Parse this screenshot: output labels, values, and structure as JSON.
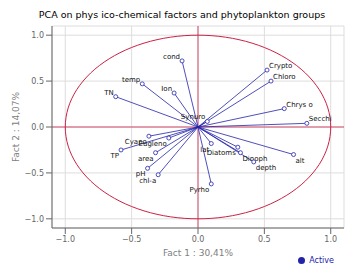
{
  "chart_data": {
    "type": "scatter",
    "title": "PCA on phys ico-chemical factors and phytoplankton groups",
    "xlabel": "Fact 1 : 30,41%",
    "ylabel": "Fact 2 : 14,07%",
    "xlim": [
      -1.1,
      1.1
    ],
    "ylim": [
      -1.1,
      1.1
    ],
    "xticks": [
      {
        "value": -1.0,
        "label": "−1.0"
      },
      {
        "value": -0.5,
        "label": "−0.5"
      },
      {
        "value": 0.0,
        "label": "0.0"
      },
      {
        "value": 0.5,
        "label": "0.5"
      },
      {
        "value": 1.0,
        "label": "1.0"
      }
    ],
    "yticks": [
      {
        "value": -1.0,
        "label": "−1.0"
      },
      {
        "value": -0.5,
        "label": "−0.5"
      },
      {
        "value": 0.0,
        "label": "0.0"
      },
      {
        "value": 0.5,
        "label": "0.5"
      },
      {
        "value": 1.0,
        "label": "1.0"
      }
    ],
    "grid": true,
    "legend": "lower right",
    "series": [
      {
        "name": "Active",
        "color": "#2222aa",
        "marker": "circle",
        "labels": [
          "cond",
          "temp",
          "Ion",
          "TN",
          "Crypto",
          "Chloro",
          "Chrys o",
          "Secchi",
          "Synuro",
          "Cyano",
          "Eugleno",
          "lat",
          "TP",
          "area",
          "pH",
          "chl-a",
          "Diatoms",
          "Dinoph",
          "alt",
          "depth",
          "Pyrho"
        ],
        "x": [
          -0.12,
          -0.42,
          -0.18,
          -0.62,
          0.52,
          0.55,
          0.65,
          0.82,
          0.07,
          -0.37,
          -0.22,
          0.1,
          -0.58,
          -0.32,
          -0.38,
          -0.3,
          0.3,
          0.32,
          0.72,
          0.42,
          0.1
        ],
        "y": [
          0.72,
          0.47,
          0.37,
          0.33,
          0.62,
          0.5,
          0.2,
          0.04,
          0.06,
          -0.1,
          -0.12,
          -0.18,
          -0.25,
          -0.28,
          -0.45,
          -0.52,
          -0.22,
          -0.28,
          -0.3,
          -0.38,
          -0.62
        ]
      }
    ],
    "circle": {
      "radius": 1.0,
      "color": "#cc2244"
    },
    "reference_lines": {
      "x": 0,
      "y": 0,
      "color": "#cc2244"
    }
  }
}
